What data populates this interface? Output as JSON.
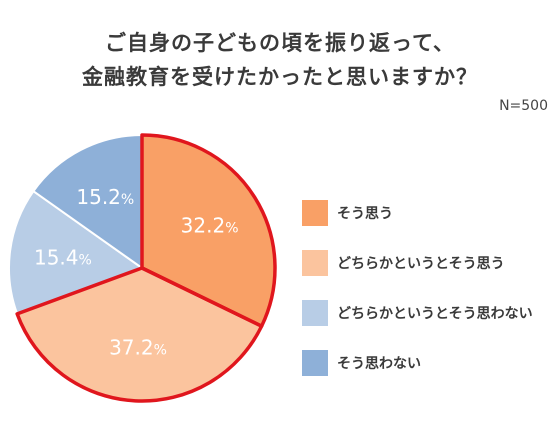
{
  "title_lines": [
    "ご自身の子どもの頃を振り返って、",
    "金融教育を受けたかったと思いますか？"
  ],
  "sample_size": "N=500",
  "chart_data": {
    "type": "pie",
    "title": "ご自身の子どもの頃を振り返って、金融教育を受けたかったと思いますか？",
    "categories": [
      "そう思う",
      "どちらかというとそう思う",
      "どちらかというとそう思わない",
      "そう思わない"
    ],
    "values": [
      32.2,
      37.2,
      15.4,
      15.2
    ],
    "value_labels": [
      "32.2",
      "37.2",
      "15.4",
      "15.2"
    ],
    "unit": "%",
    "colors": [
      "#f9a066",
      "#fbc49e",
      "#b8cde6",
      "#8eb0d8"
    ],
    "highlight_color": "#e0161d",
    "highlighted": [
      "そう思う",
      "どちらかというとそう思う"
    ],
    "start_angle_deg": 0,
    "direction": "clockwise",
    "legend_position": "right"
  }
}
